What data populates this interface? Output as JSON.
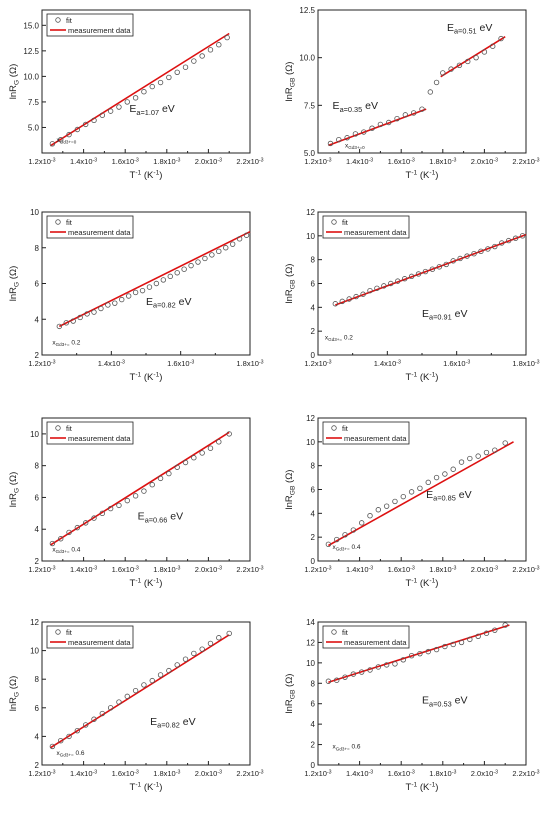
{
  "figure": {
    "colors": {
      "fit_marker": "#555555",
      "measurement_line": "#dd1111",
      "axes": "#222222"
    },
    "legend": {
      "fit": "fit",
      "measurement": "measurement data"
    }
  },
  "chart_data": [
    {
      "type": "line",
      "row": 0,
      "col": 0,
      "ylabel": "lnR_G (Ω)",
      "xlabel": "T^-1 (K^-1)",
      "x_ticks": [
        "1.2x10^-3",
        "1.4x10^-3",
        "1.6x10^-3",
        "1.8x10^-3",
        "2.0x10^-3",
        "2.2x10^-3"
      ],
      "y_ticks": [
        "5.0",
        "7.5",
        "10.0",
        "12.5",
        "15.0"
      ],
      "xlim": [
        1.2,
        2.2
      ],
      "ylim": [
        2.5,
        16.5
      ],
      "x_unit": "10^-3 K^-1",
      "legend": [
        "fit",
        "measurement data"
      ],
      "legend_position": "top-left",
      "annotations": [
        {
          "text": "E_a=1.07 eV",
          "x": 1.62,
          "y": 6.5
        },
        {
          "text": "x_Gd3+=0",
          "x": 1.27,
          "y": 3.6
        }
      ],
      "series": [
        {
          "name": "fit",
          "kind": "scatter",
          "x": [
            1.25,
            1.29,
            1.33,
            1.37,
            1.41,
            1.45,
            1.49,
            1.53,
            1.57,
            1.61,
            1.65,
            1.69,
            1.73,
            1.77,
            1.81,
            1.85,
            1.89,
            1.93,
            1.97,
            2.01,
            2.05,
            2.09
          ],
          "y": [
            3.4,
            3.8,
            4.3,
            4.8,
            5.3,
            5.7,
            6.2,
            6.6,
            7.0,
            7.5,
            7.9,
            8.5,
            9.0,
            9.4,
            9.9,
            10.4,
            10.9,
            11.5,
            12.0,
            12.6,
            13.1,
            13.8
          ]
        },
        {
          "name": "measurement data",
          "kind": "line",
          "x": [
            1.24,
            2.1
          ],
          "y": [
            3.2,
            14.2
          ]
        }
      ]
    },
    {
      "type": "line",
      "row": 0,
      "col": 1,
      "ylabel": "lnR_GB (Ω)",
      "xlabel": "T^-1 (K^-1)",
      "x_ticks": [
        "1.2x10^-3",
        "1.4x10^-3",
        "1.6x10^-3",
        "1.8x10^-3",
        "2.0x10^-3",
        "2.2x10^-3"
      ],
      "y_ticks": [
        "5.0",
        "7.5",
        "10.0",
        "12.5"
      ],
      "xlim": [
        1.2,
        2.2
      ],
      "ylim": [
        5.0,
        12.5
      ],
      "x_unit": "10^-3 K^-1",
      "legend": [],
      "legend_position": "none",
      "annotations": [
        {
          "text": "E_a=0.51 eV",
          "x": 1.82,
          "y": 11.4
        },
        {
          "text": "E_a=0.35 eV",
          "x": 1.27,
          "y": 7.3
        },
        {
          "text": "x_Gd3+=0",
          "x": 1.33,
          "y": 5.3
        }
      ],
      "series": [
        {
          "name": "",
          "kind": "scatter",
          "x": [
            1.26,
            1.3,
            1.34,
            1.38,
            1.42,
            1.46,
            1.5,
            1.54,
            1.58,
            1.62,
            1.66,
            1.7,
            1.74,
            1.77,
            1.8,
            1.84,
            1.88,
            1.92,
            1.96,
            2.0,
            2.04,
            2.08
          ],
          "y": [
            5.5,
            5.7,
            5.8,
            6.0,
            6.1,
            6.3,
            6.5,
            6.6,
            6.8,
            7.0,
            7.1,
            7.3,
            8.2,
            8.7,
            9.2,
            9.4,
            9.6,
            9.8,
            10.0,
            10.3,
            10.6,
            11.0
          ]
        },
        {
          "name": "",
          "kind": "line",
          "x": [
            1.25,
            1.72
          ],
          "y": [
            5.4,
            7.3
          ]
        },
        {
          "name": "",
          "kind": "line",
          "x": [
            1.79,
            2.1
          ],
          "y": [
            9.0,
            11.1
          ]
        }
      ]
    },
    {
      "type": "line",
      "row": 1,
      "col": 0,
      "ylabel": "lnR_G (Ω)",
      "xlabel": "T^-1 (K^-1)",
      "x_ticks": [
        "1.2x10^-3",
        "1.4x10^-3",
        "1.6x10^-3",
        "1.8x10^-3"
      ],
      "y_ticks": [
        "2",
        "4",
        "6",
        "8",
        "10"
      ],
      "xlim": [
        1.2,
        1.8
      ],
      "ylim": [
        2,
        10
      ],
      "x_unit": "10^-3 K^-1",
      "legend": [
        "fit",
        "measurement data"
      ],
      "legend_position": "top-left",
      "annotations": [
        {
          "text": "E_a=0.82 eV",
          "x": 1.5,
          "y": 4.8
        },
        {
          "text": "x_Gd3+= 0.2",
          "x": 1.23,
          "y": 2.6
        }
      ],
      "series": [
        {
          "name": "fit",
          "kind": "scatter",
          "x": [
            1.25,
            1.27,
            1.29,
            1.31,
            1.33,
            1.35,
            1.37,
            1.39,
            1.41,
            1.43,
            1.45,
            1.47,
            1.49,
            1.51,
            1.53,
            1.55,
            1.57,
            1.59,
            1.61,
            1.63,
            1.65,
            1.67,
            1.69,
            1.71,
            1.73,
            1.75,
            1.77,
            1.79
          ],
          "y": [
            3.6,
            3.8,
            3.9,
            4.1,
            4.3,
            4.4,
            4.6,
            4.8,
            4.9,
            5.1,
            5.3,
            5.5,
            5.6,
            5.8,
            6.0,
            6.2,
            6.4,
            6.6,
            6.8,
            7.0,
            7.2,
            7.4,
            7.6,
            7.8,
            8.0,
            8.2,
            8.5,
            8.7
          ]
        },
        {
          "name": "measurement data",
          "kind": "line",
          "x": [
            1.25,
            1.8
          ],
          "y": [
            3.6,
            8.9
          ]
        }
      ]
    },
    {
      "type": "line",
      "row": 1,
      "col": 1,
      "ylabel": "lnR_GB (Ω)",
      "xlabel": "T^-1 (K^-1)",
      "x_ticks": [
        "1.2x10^-3",
        "1.4x10^-3",
        "1.6x10^-3",
        "1.8x10^-3"
      ],
      "y_ticks": [
        "0",
        "2",
        "4",
        "6",
        "8",
        "10",
        "12"
      ],
      "xlim": [
        1.2,
        1.8
      ],
      "ylim": [
        0,
        12
      ],
      "x_unit": "10^-3 K^-1",
      "legend": [
        "fit",
        "measurement data"
      ],
      "legend_position": "top-left",
      "annotations": [
        {
          "text": "E_a=0.91 eV",
          "x": 1.5,
          "y": 3.2
        },
        {
          "text": "x_Gd3+= 0.2",
          "x": 1.22,
          "y": 1.3
        }
      ],
      "series": [
        {
          "name": "fit",
          "kind": "scatter",
          "x": [
            1.25,
            1.27,
            1.29,
            1.31,
            1.33,
            1.35,
            1.37,
            1.39,
            1.41,
            1.43,
            1.45,
            1.47,
            1.49,
            1.51,
            1.53,
            1.55,
            1.57,
            1.59,
            1.61,
            1.63,
            1.65,
            1.67,
            1.69,
            1.71,
            1.73,
            1.75,
            1.77,
            1.79
          ],
          "y": [
            4.3,
            4.5,
            4.7,
            4.9,
            5.1,
            5.4,
            5.6,
            5.8,
            6.0,
            6.2,
            6.4,
            6.6,
            6.8,
            7.0,
            7.2,
            7.4,
            7.6,
            7.9,
            8.1,
            8.3,
            8.5,
            8.7,
            8.9,
            9.1,
            9.4,
            9.6,
            9.8,
            10.0
          ]
        },
        {
          "name": "measurement data",
          "kind": "line",
          "x": [
            1.25,
            1.8
          ],
          "y": [
            4.2,
            10.1
          ]
        }
      ]
    },
    {
      "type": "line",
      "row": 2,
      "col": 0,
      "ylabel": "lnR_G (Ω)",
      "xlabel": "T^-1 (K^-1)",
      "x_ticks": [
        "1.2x10^-3",
        "1.4x10^-3",
        "1.6x10^-3",
        "1.8x10^-3",
        "2.0x10^-3",
        "2.2x10^-3"
      ],
      "y_ticks": [
        "2",
        "4",
        "6",
        "8",
        "10"
      ],
      "xlim": [
        1.2,
        2.2
      ],
      "ylim": [
        2,
        11
      ],
      "x_unit": "10^-3 K^-1",
      "legend": [
        "fit",
        "measurement data"
      ],
      "legend_position": "top-left",
      "annotations": [
        {
          "text": "E_a=0.66 eV",
          "x": 1.66,
          "y": 4.6
        },
        {
          "text": "x_Gd3+= 0.4",
          "x": 1.25,
          "y": 2.6
        }
      ],
      "series": [
        {
          "name": "fit",
          "kind": "scatter",
          "x": [
            1.25,
            1.29,
            1.33,
            1.37,
            1.41,
            1.45,
            1.49,
            1.53,
            1.57,
            1.61,
            1.65,
            1.69,
            1.73,
            1.77,
            1.81,
            1.85,
            1.89,
            1.93,
            1.97,
            2.01,
            2.05,
            2.1
          ],
          "y": [
            3.1,
            3.4,
            3.8,
            4.1,
            4.4,
            4.7,
            5.0,
            5.3,
            5.5,
            5.8,
            6.1,
            6.4,
            6.8,
            7.2,
            7.5,
            7.9,
            8.2,
            8.5,
            8.8,
            9.1,
            9.5,
            10.0
          ]
        },
        {
          "name": "measurement data",
          "kind": "line",
          "x": [
            1.24,
            2.1
          ],
          "y": [
            3.0,
            10.1
          ]
        }
      ]
    },
    {
      "type": "line",
      "row": 2,
      "col": 1,
      "ylabel": "lnR_GB (Ω)",
      "xlabel": "T^-1 (K^-1)",
      "x_ticks": [
        "1.2x10^-3",
        "1.4x10^-3",
        "1.6x10^-3",
        "1.8x10^-3",
        "2.0x10^-3",
        "2.2x10^-3"
      ],
      "y_ticks": [
        "0",
        "2",
        "4",
        "6",
        "8",
        "10",
        "12"
      ],
      "xlim": [
        1.2,
        2.2
      ],
      "ylim": [
        0,
        12
      ],
      "x_unit": "10^-3 K^-1",
      "legend": [
        "fit",
        "measurement data"
      ],
      "legend_position": "top-left",
      "annotations": [
        {
          "text": "E_a=0.85 eV",
          "x": 1.72,
          "y": 5.3
        },
        {
          "text": "x_Gd3+= 0.4",
          "x": 1.27,
          "y": 1.0
        }
      ],
      "series": [
        {
          "name": "fit",
          "kind": "scatter",
          "x": [
            1.25,
            1.29,
            1.33,
            1.37,
            1.41,
            1.45,
            1.49,
            1.53,
            1.57,
            1.61,
            1.65,
            1.69,
            1.73,
            1.77,
            1.81,
            1.85,
            1.89,
            1.93,
            1.97,
            2.01,
            2.05,
            2.1
          ],
          "y": [
            1.4,
            1.8,
            2.2,
            2.6,
            3.2,
            3.8,
            4.3,
            4.6,
            5.0,
            5.4,
            5.8,
            6.1,
            6.6,
            7.0,
            7.3,
            7.7,
            8.3,
            8.6,
            8.8,
            9.1,
            9.3,
            9.9
          ]
        },
        {
          "name": "measurement data",
          "kind": "line",
          "x": [
            1.25,
            2.14
          ],
          "y": [
            1.3,
            10.0
          ]
        }
      ]
    },
    {
      "type": "line",
      "row": 3,
      "col": 0,
      "ylabel": "lnR_G (Ω)",
      "xlabel": "T^-1 (K^-1)",
      "x_ticks": [
        "1.2x10^-3",
        "1.4x10^-3",
        "1.6x10^-3",
        "1.8x10^-3",
        "2.0x10^-3",
        "2.2x10^-3"
      ],
      "y_ticks": [
        "2",
        "4",
        "6",
        "8",
        "10",
        "12"
      ],
      "xlim": [
        1.2,
        2.2
      ],
      "ylim": [
        2,
        12
      ],
      "x_unit": "10^-3 K^-1",
      "legend": [
        "fit",
        "measurement data"
      ],
      "legend_position": "top-left",
      "annotations": [
        {
          "text": "E_a=0.82 eV",
          "x": 1.72,
          "y": 4.8
        },
        {
          "text": "x_Gd3+= 0.6",
          "x": 1.27,
          "y": 2.7
        }
      ],
      "series": [
        {
          "name": "fit",
          "kind": "scatter",
          "x": [
            1.25,
            1.29,
            1.33,
            1.37,
            1.41,
            1.45,
            1.49,
            1.53,
            1.57,
            1.61,
            1.65,
            1.69,
            1.73,
            1.77,
            1.81,
            1.85,
            1.89,
            1.93,
            1.97,
            2.01,
            2.05,
            2.1
          ],
          "y": [
            3.3,
            3.7,
            4.0,
            4.4,
            4.8,
            5.2,
            5.6,
            6.0,
            6.4,
            6.8,
            7.2,
            7.6,
            7.9,
            8.3,
            8.6,
            9.0,
            9.4,
            9.8,
            10.1,
            10.5,
            10.9,
            11.2
          ]
        },
        {
          "name": "measurement data",
          "kind": "line",
          "x": [
            1.24,
            2.1
          ],
          "y": [
            3.2,
            11.1
          ]
        }
      ]
    },
    {
      "type": "line",
      "row": 3,
      "col": 1,
      "ylabel": "lnR_GB (Ω)",
      "xlabel": "T^-1 (K^-1)",
      "x_ticks": [
        "1.2x10^-3",
        "1.4x10^-3",
        "1.6x10^-3",
        "1.8x10^-3",
        "2.0x10^-3",
        "2.2x10^-3"
      ],
      "y_ticks": [
        "0",
        "2",
        "4",
        "6",
        "8",
        "10",
        "12",
        "14"
      ],
      "xlim": [
        1.2,
        2.2
      ],
      "ylim": [
        0,
        14
      ],
      "x_unit": "10^-3 K^-1",
      "legend": [
        "fit",
        "measurement data"
      ],
      "legend_position": "top-left",
      "annotations": [
        {
          "text": "E_a=0.53 eV",
          "x": 1.7,
          "y": 6.0
        },
        {
          "text": "x_Gd3+= 0.6",
          "x": 1.27,
          "y": 1.6
        }
      ],
      "series": [
        {
          "name": "fit",
          "kind": "scatter",
          "x": [
            1.25,
            1.29,
            1.33,
            1.37,
            1.41,
            1.45,
            1.49,
            1.53,
            1.57,
            1.61,
            1.65,
            1.69,
            1.73,
            1.77,
            1.81,
            1.85,
            1.89,
            1.93,
            1.97,
            2.01,
            2.05,
            2.1
          ],
          "y": [
            8.2,
            8.3,
            8.6,
            8.9,
            9.1,
            9.3,
            9.6,
            9.8,
            9.9,
            10.3,
            10.7,
            10.9,
            11.1,
            11.3,
            11.6,
            11.8,
            12.0,
            12.3,
            12.6,
            12.9,
            13.2,
            13.7
          ]
        },
        {
          "name": "measurement data",
          "kind": "line",
          "x": [
            1.25,
            2.12
          ],
          "y": [
            8.1,
            13.7
          ]
        }
      ]
    }
  ]
}
